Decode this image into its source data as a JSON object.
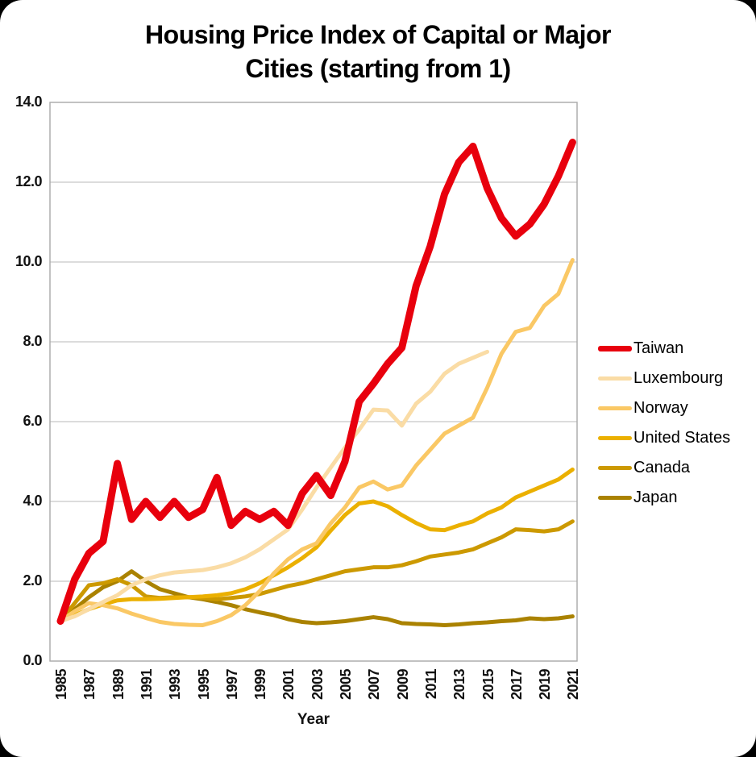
{
  "title": "Housing Price Index of Capital or Major Cities (starting from 1)",
  "x_axis_title": "Year",
  "plot": {
    "grid_color": "#c6c6c6",
    "box_color": "#a9a9a9",
    "background": "#ffffff"
  },
  "chart_data": {
    "type": "line",
    "title": "Housing Price Index of Capital or Major Cities (starting from 1)",
    "xlabel": "Year",
    "ylabel": "",
    "ylim": [
      0,
      14
    ],
    "ytick_step": 2,
    "ytick_labels": [
      "0.0",
      "2.0",
      "4.0",
      "6.0",
      "8.0",
      "10.0",
      "12.0",
      "14.0"
    ],
    "grid": true,
    "legend_position": "right",
    "x": [
      1985,
      1986,
      1987,
      1988,
      1989,
      1990,
      1991,
      1992,
      1993,
      1994,
      1995,
      1996,
      1997,
      1998,
      1999,
      2000,
      2001,
      2002,
      2003,
      2004,
      2005,
      2006,
      2007,
      2008,
      2009,
      2010,
      2011,
      2012,
      2013,
      2014,
      2015,
      2016,
      2017,
      2018,
      2019,
      2020,
      2021
    ],
    "xticks": [
      1985,
      1987,
      1989,
      1991,
      1993,
      1995,
      1997,
      1999,
      2001,
      2003,
      2005,
      2007,
      2009,
      2011,
      2013,
      2015,
      2017,
      2019,
      2021
    ],
    "series": [
      {
        "name": "Taiwan",
        "color": "#E8000D",
        "line_width": 9,
        "values": [
          1.0,
          2.05,
          2.7,
          3.0,
          4.95,
          3.55,
          4.0,
          3.6,
          4.0,
          3.6,
          3.8,
          4.6,
          3.4,
          3.75,
          3.55,
          3.75,
          3.4,
          4.2,
          4.65,
          4.15,
          5.0,
          6.5,
          6.95,
          7.45,
          7.85,
          9.4,
          10.4,
          11.7,
          12.5,
          12.9,
          11.85,
          11.1,
          10.65,
          10.95,
          11.45,
          12.15,
          13.0
        ]
      },
      {
        "name": "Luxembourg",
        "color": "#FADCA5",
        "line_width": 5,
        "values": [
          1.0,
          1.12,
          1.3,
          1.48,
          1.65,
          1.9,
          2.05,
          2.15,
          2.22,
          2.25,
          2.28,
          2.35,
          2.45,
          2.6,
          2.8,
          3.05,
          3.3,
          3.8,
          4.35,
          4.85,
          5.35,
          5.8,
          6.3,
          6.28,
          5.9,
          6.45,
          6.75,
          7.2,
          7.45,
          7.6,
          7.75,
          null,
          null,
          null,
          null,
          null,
          null
        ]
      },
      {
        "name": "Norway",
        "color": "#FAC865",
        "line_width": 5,
        "values": [
          1.0,
          1.25,
          1.45,
          1.4,
          1.32,
          1.19,
          1.08,
          0.98,
          0.93,
          0.91,
          0.9,
          1.0,
          1.15,
          1.4,
          1.75,
          2.2,
          2.55,
          2.8,
          2.95,
          3.45,
          3.85,
          4.35,
          4.5,
          4.3,
          4.4,
          4.9,
          5.3,
          5.7,
          5.9,
          6.1,
          6.85,
          7.7,
          8.25,
          8.35,
          8.9,
          9.2,
          10.05
        ]
      },
      {
        "name": "United States",
        "color": "#EBB000",
        "line_width": 5,
        "values": [
          1.0,
          1.15,
          1.3,
          1.42,
          1.52,
          1.55,
          1.55,
          1.56,
          1.58,
          1.6,
          1.62,
          1.65,
          1.7,
          1.8,
          1.95,
          2.15,
          2.35,
          2.58,
          2.85,
          3.27,
          3.66,
          3.95,
          4.0,
          3.88,
          3.66,
          3.46,
          3.3,
          3.28,
          3.4,
          3.5,
          3.7,
          3.85,
          4.1,
          4.25,
          4.4,
          4.55,
          4.8
        ]
      },
      {
        "name": "Canada",
        "color": "#CC9900",
        "line_width": 5,
        "values": [
          1.0,
          1.45,
          1.9,
          1.95,
          2.05,
          1.9,
          1.62,
          1.58,
          1.6,
          1.6,
          1.58,
          1.55,
          1.58,
          1.62,
          1.68,
          1.78,
          1.88,
          1.95,
          2.05,
          2.15,
          2.25,
          2.3,
          2.35,
          2.35,
          2.4,
          2.5,
          2.62,
          2.67,
          2.72,
          2.8,
          2.95,
          3.1,
          3.3,
          3.28,
          3.25,
          3.3,
          3.5
        ]
      },
      {
        "name": "Japan",
        "color": "#AA8200",
        "line_width": 5,
        "values": [
          1.0,
          1.3,
          1.6,
          1.85,
          2.0,
          2.25,
          2.0,
          1.8,
          1.7,
          1.6,
          1.55,
          1.48,
          1.4,
          1.3,
          1.22,
          1.15,
          1.05,
          0.98,
          0.95,
          0.97,
          1.0,
          1.05,
          1.1,
          1.05,
          0.95,
          0.93,
          0.92,
          0.9,
          0.92,
          0.95,
          0.97,
          1.0,
          1.02,
          1.07,
          1.05,
          1.07,
          1.12
        ]
      }
    ]
  }
}
